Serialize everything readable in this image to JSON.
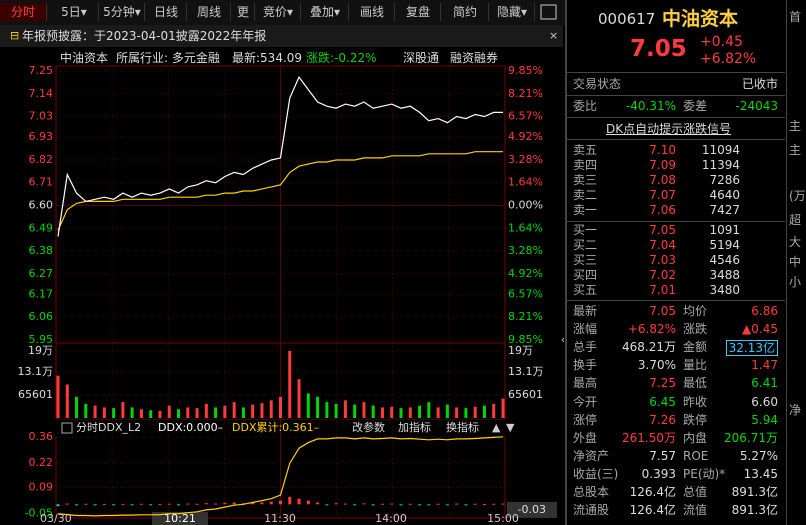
{
  "toolbar": {
    "tabs": [
      "分时",
      "5日▾",
      "5分钟▾",
      "日线",
      "周线",
      "更",
      "竞价▾",
      "叠加▾",
      "画线",
      "复盘",
      "简约",
      "隐藏▾"
    ]
  },
  "notice": "年报预披露：于2023-04-01披露2022年年报",
  "info": {
    "name": "中油资本",
    "industry": "所属行业: 多元金融",
    "latest": "最新:534.09",
    "change": "涨跌:-0.22%",
    "tags": [
      "深股通",
      "融资融券"
    ]
  },
  "price_chart": {
    "ylim": [
      5.95,
      7.25
    ],
    "yticks": [
      {
        "value": 7.25,
        "label": "7.25"
      },
      {
        "value": 7.14,
        "label": "7.14"
      },
      {
        "value": 7.03,
        "label": "7.03"
      },
      {
        "value": 6.93,
        "label": "6.93"
      },
      {
        "value": 6.82,
        "label": "6.82"
      },
      {
        "value": 6.71,
        "label": "6.71"
      },
      {
        "value": 6.6,
        "label": "6.60"
      },
      {
        "value": 6.49,
        "label": "6.49"
      },
      {
        "value": 6.38,
        "label": "6.38"
      },
      {
        "value": 6.27,
        "label": "6.27"
      },
      {
        "value": 6.17,
        "label": "6.17"
      },
      {
        "value": 6.06,
        "label": "6.06"
      },
      {
        "value": 5.95,
        "label": "5.95"
      }
    ],
    "pct_labels": [
      "9.85%",
      "8.21%",
      "6.57%",
      "4.92%",
      "3.28%",
      "1.64%",
      "0.00%",
      "1.64%",
      "3.28%",
      "4.92%",
      "6.57%",
      "8.21%",
      "9.85%"
    ],
    "price": [
      6.45,
      6.75,
      6.66,
      6.62,
      6.63,
      6.64,
      6.63,
      6.66,
      6.64,
      6.66,
      6.65,
      6.66,
      6.68,
      6.66,
      6.69,
      6.7,
      6.72,
      6.71,
      6.74,
      6.76,
      6.75,
      6.78,
      6.8,
      6.82,
      6.83,
      7.12,
      7.22,
      7.16,
      7.1,
      7.08,
      7.07,
      7.09,
      7.08,
      7.1,
      7.07,
      7.08,
      7.09,
      7.07,
      7.08,
      7.05,
      7.01,
      7.02,
      7.0,
      7.03,
      7.02,
      7.04,
      7.03,
      7.05,
      7.05
    ],
    "avg": [
      6.48,
      6.58,
      6.61,
      6.62,
      6.62,
      6.62,
      6.62,
      6.63,
      6.63,
      6.63,
      6.63,
      6.63,
      6.64,
      6.64,
      6.64,
      6.64,
      6.65,
      6.65,
      6.66,
      6.66,
      6.67,
      6.67,
      6.68,
      6.69,
      6.7,
      6.76,
      6.79,
      6.8,
      6.81,
      6.81,
      6.82,
      6.82,
      6.82,
      6.83,
      6.83,
      6.83,
      6.84,
      6.84,
      6.84,
      6.84,
      6.85,
      6.85,
      6.85,
      6.85,
      6.85,
      6.86,
      6.86,
      6.86,
      6.86
    ]
  },
  "volume_chart": {
    "ylim": [
      0,
      190000
    ],
    "yticks": [
      {
        "value": 190000,
        "label": "19万"
      },
      {
        "value": 131000,
        "label": "13.1万"
      },
      65601
    ],
    "values": [
      120000,
      95000,
      60000,
      40000,
      35000,
      30000,
      28000,
      45000,
      30000,
      25000,
      22000,
      20000,
      35000,
      25000,
      30000,
      28000,
      40000,
      30000,
      35000,
      45000,
      30000,
      38000,
      42000,
      50000,
      60000,
      190000,
      110000,
      70000,
      60000,
      45000,
      40000,
      50000,
      38000,
      45000,
      35000,
      30000,
      32000,
      28000,
      30000,
      35000,
      45000,
      30000,
      38000,
      30000,
      28000,
      32000,
      35000,
      40000,
      55000
    ]
  },
  "ddx_chart": {
    "title": "分时DDX_L2",
    "ddx": "DDX:0.000–",
    "ddx_total": "DDX累计:0.361–",
    "buttons": [
      "改参数",
      "加指标",
      "换指标"
    ],
    "ylim": [
      -0.08,
      0.38
    ],
    "yticks": [
      0.36,
      0.22,
      0.09,
      -0.05
    ],
    "current": "-0.03",
    "bars": [
      -0.01,
      0.004,
      -0.004,
      0.003,
      -0.003,
      0.002,
      -0.002,
      0.002,
      -0.002,
      0.003,
      -0.002,
      0.002,
      0.003,
      -0.002,
      0.004,
      0.003,
      0.006,
      0.004,
      0.008,
      0.01,
      0.006,
      0.012,
      0.01,
      0.014,
      0.02,
      0.04,
      0.03,
      0.02,
      0.01,
      -0.004,
      0.006,
      0.004,
      -0.003,
      0.005,
      -0.004,
      0.003,
      0.004,
      -0.003,
      0.003,
      -0.004,
      -0.005,
      0.003,
      -0.004,
      0.004,
      -0.003,
      0.003,
      0.002,
      0.003,
      0.004
    ],
    "cumulative": [
      -0.05,
      -0.055,
      -0.06,
      -0.06,
      -0.062,
      -0.06,
      -0.06,
      -0.058,
      -0.058,
      -0.056,
      -0.056,
      -0.055,
      -0.05,
      -0.05,
      -0.045,
      -0.04,
      -0.03,
      -0.025,
      -0.015,
      -0.005,
      0.0,
      0.01,
      0.02,
      0.03,
      0.05,
      0.22,
      0.3,
      0.33,
      0.35,
      0.35,
      0.355,
      0.355,
      0.35,
      0.355,
      0.35,
      0.352,
      0.355,
      0.35,
      0.352,
      0.348,
      0.345,
      0.348,
      0.345,
      0.35,
      0.35,
      0.352,
      0.355,
      0.358,
      0.361
    ]
  },
  "time_axis": {
    "labels": [
      "03/30",
      "10:21",
      "11:30",
      "14:00",
      "15:00"
    ]
  },
  "quote": {
    "code": "000617",
    "name": "中油资本",
    "price": "7.05",
    "change": "+0.45",
    "change_pct": "+6.82%",
    "status_label": "交易状态",
    "status": "已收市",
    "wb_label": "委比",
    "wb": "-40.31%",
    "wc_label": "委差",
    "wc": "-24043",
    "signal": "DK点自动提示涨跌信号"
  },
  "book": {
    "sells": [
      [
        "卖五",
        "7.10",
        "11094"
      ],
      [
        "卖四",
        "7.09",
        "11394"
      ],
      [
        "卖三",
        "7.08",
        "7286"
      ],
      [
        "卖二",
        "7.07",
        "4640"
      ],
      [
        "卖一",
        "7.06",
        "7427"
      ]
    ],
    "buys": [
      [
        "买一",
        "7.05",
        "1091"
      ],
      [
        "买二",
        "7.04",
        "5194"
      ],
      [
        "买三",
        "7.03",
        "4546"
      ],
      [
        "买四",
        "7.02",
        "3488"
      ],
      [
        "买五",
        "7.01",
        "3480"
      ]
    ]
  },
  "stats": [
    [
      "最新",
      "7.05",
      "均价",
      "6.86"
    ],
    [
      "涨幅",
      "+6.82%",
      "涨跌",
      "▲0.45"
    ],
    [
      "总手",
      "468.21万",
      "金额",
      "32.13亿"
    ],
    [
      "换手",
      "3.70%",
      "量比",
      "1.47"
    ],
    [
      "最高",
      "7.25",
      "最低",
      "6.41"
    ],
    [
      "今开",
      "6.45",
      "昨收",
      "6.60"
    ],
    [
      "涨停",
      "7.26",
      "跌停",
      "5.94"
    ],
    [
      "外盘",
      "261.50万",
      "内盘",
      "206.71万"
    ],
    [
      "净资产",
      "7.57",
      "ROE",
      "5.27%"
    ],
    [
      "收益(三)",
      "0.393",
      "PE(动)*",
      "13.45"
    ],
    [
      "总股本",
      "126.4亿",
      "总值",
      "891.3亿"
    ],
    [
      "流通股",
      "126.4亿",
      "流值",
      "891.3亿"
    ]
  ],
  "side": [
    "首",
    "主",
    "主",
    "(万",
    "超",
    "大",
    "中",
    "小",
    "净"
  ]
}
